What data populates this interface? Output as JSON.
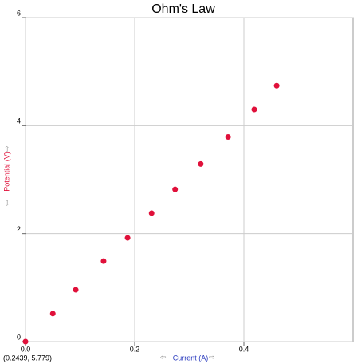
{
  "chart_data": {
    "type": "scatter",
    "title": "Ohm's Law",
    "x_label": "Current (A)",
    "y_label": "Potential (V)",
    "coordinates": "(0.2439, 5.779)",
    "xlim": [
      0,
      0.6
    ],
    "ylim": [
      0,
      6
    ],
    "xticks": [
      {
        "value": 0,
        "label": "0.0"
      },
      0.2,
      0.4
    ],
    "yticks": [
      0,
      2,
      4,
      6
    ],
    "grid": true,
    "series": [
      {
        "name": "Potential",
        "color": "#e0103a",
        "x": [
          0,
          0.05,
          0.092,
          0.143,
          0.187,
          0.231,
          0.274,
          0.321,
          0.371,
          0.419,
          0.46
        ],
        "values": [
          0,
          0.52,
          0.96,
          1.49,
          1.92,
          2.38,
          2.82,
          3.29,
          3.79,
          4.3,
          4.74
        ]
      }
    ]
  }
}
